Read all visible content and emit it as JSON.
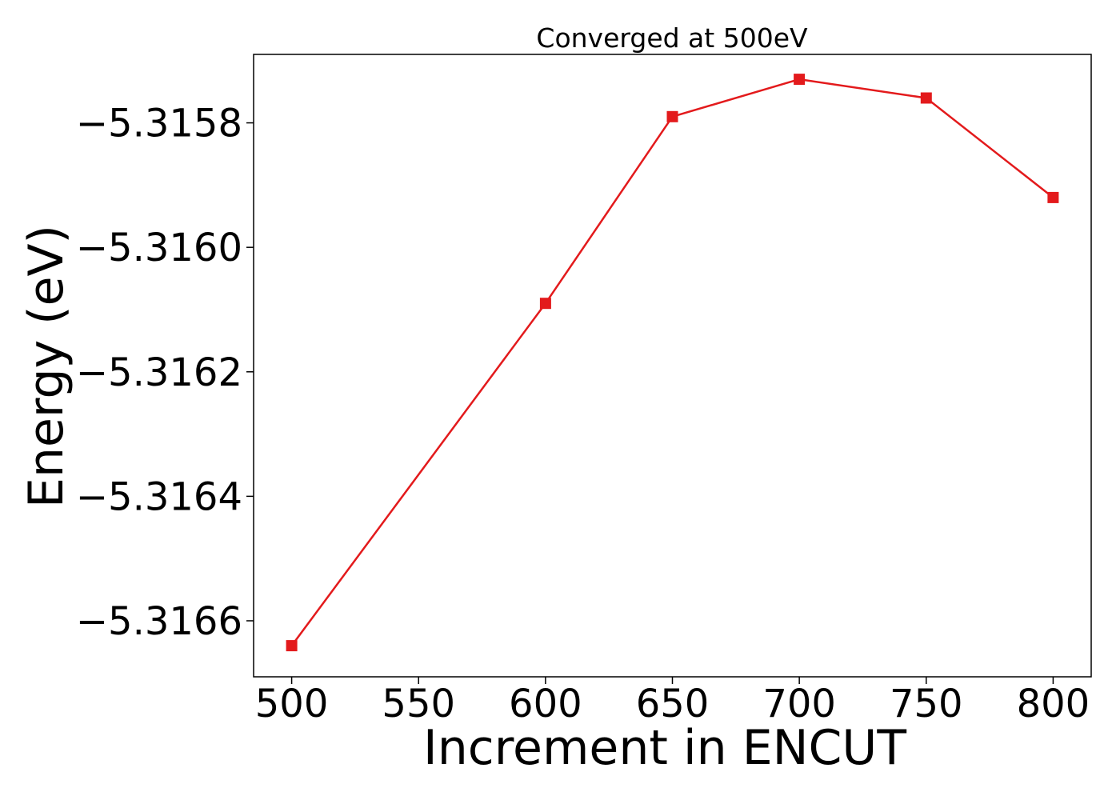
{
  "chart_data": {
    "type": "line",
    "title": "Converged at 500eV",
    "xlabel": "Increment in ENCUT",
    "ylabel": "Energy (eV)",
    "x": [
      500,
      600,
      650,
      700,
      750,
      800
    ],
    "series": [
      {
        "values": [
          -5.31664,
          -5.31609,
          -5.31579,
          -5.31573,
          -5.31576,
          -5.31592
        ],
        "color": "#e31a1c",
        "marker": "square"
      }
    ],
    "xticks": [
      500,
      550,
      600,
      650,
      700,
      750,
      800
    ],
    "xtick_labels": [
      "500",
      "550",
      "600",
      "650",
      "700",
      "750",
      "800"
    ],
    "yticks": [
      -5.3158,
      -5.316,
      -5.3162,
      -5.3164,
      -5.3166
    ],
    "ytick_labels": [
      "−5.3158",
      "−5.3160",
      "−5.3162",
      "−5.3164",
      "−5.3166"
    ],
    "xlim": [
      485,
      815
    ],
    "ylim": [
      -5.31669,
      -5.31569
    ],
    "grid": false,
    "legend": "none"
  }
}
